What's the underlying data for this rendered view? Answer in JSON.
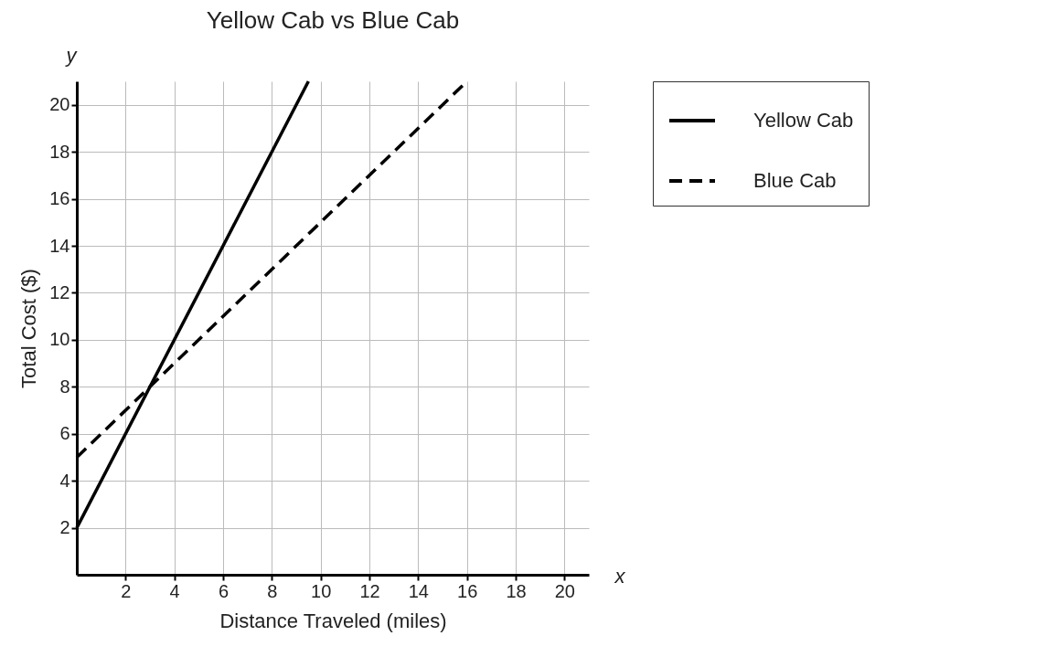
{
  "chart_data": {
    "type": "line",
    "title": "Yellow Cab vs Blue Cab",
    "xlabel": "Distance Traveled (miles)",
    "ylabel": "Total Cost ($)",
    "series": [
      {
        "name": "Yellow Cab",
        "color": "#000000",
        "line_style": "solid",
        "x": [
          0,
          9.5
        ],
        "values": [
          2,
          21
        ]
      },
      {
        "name": "Blue Cab",
        "color": "#000000",
        "line_style": "dashed",
        "x": [
          0,
          16
        ],
        "values": [
          5,
          21
        ]
      }
    ],
    "xlim": [
      0,
      21
    ],
    "ylim": [
      0,
      21
    ],
    "xticks": [
      2,
      4,
      6,
      8,
      10,
      12,
      14,
      16,
      18,
      20
    ],
    "yticks": [
      2,
      4,
      6,
      8,
      10,
      12,
      14,
      16,
      18,
      20
    ],
    "grid": true,
    "legend": "right",
    "marker": "none",
    "annotations": [
      "y",
      "x"
    ]
  }
}
